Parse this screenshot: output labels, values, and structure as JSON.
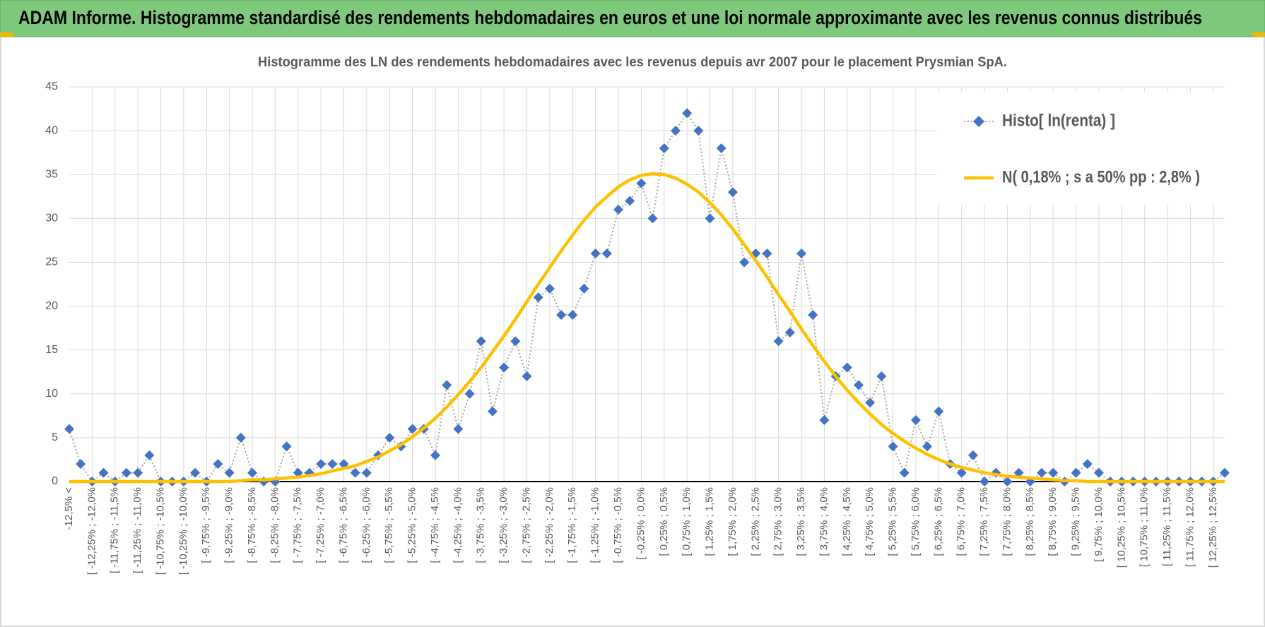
{
  "header": {
    "title": "ADAM Informe. Histogramme standardisé des rendements hebdomadaires en euros et une loi normale approximante avec les revenus connus distribués"
  },
  "chart_data": {
    "type": "line",
    "title": "Histogramme des LN des rendements hebdomadaires avec les revenus depuis avr 2007 pour le placement Prysmian SpA.",
    "categories": [
      "-12,5% <",
      null,
      "[ -12,25% ; -12,0%",
      null,
      "[ -11,75% ; -11,5%",
      null,
      "[ -11,25% ; -11,0%",
      null,
      "[ -10,75% ; -10,5%",
      null,
      "[ -10,25% ; -10,0%",
      null,
      "[ -9,75% ; -9,5%",
      null,
      "[ -9,25% ; -9,0%",
      null,
      "[ -8,75% ; -8,5%",
      null,
      "[ -8,25% ; -8,0%",
      null,
      "[ -7,75% ; -7,5%",
      null,
      "[ -7,25% ; -7,0%",
      null,
      "[ -6,75% ; -6,5%",
      null,
      "[ -6,25% ; -6,0%",
      null,
      "[ -5,75% ; -5,5%",
      null,
      "[ -5,25% ; -5,0%",
      null,
      "[ -4,75% ; -4,5%",
      null,
      "[ -4,25% ; -4,0%",
      null,
      "[ -3,75% ; -3,5%",
      null,
      "[ -3,25% ; -3,0%",
      null,
      "[ -2,75% ; -2,5%",
      null,
      "[ -2,25% ; -2,0%",
      null,
      "[ -1,75% ; -1,5%",
      null,
      "[ -1,25% ; -1,0%",
      null,
      "[ -0,75% ; -0,5%",
      null,
      "[ -0,25% ; 0,0%",
      null,
      "[ 0,25% ; 0,5%",
      null,
      "[ 0,75% ; 1,0%",
      null,
      "[ 1,25% ; 1,5%",
      null,
      "[ 1,75% ; 2,0%",
      null,
      "[ 2,25% ; 2,5%",
      null,
      "[ 2,75% ; 3,0%",
      null,
      "[ 3,25% ; 3,5%",
      null,
      "[ 3,75% ; 4,0%",
      null,
      "[ 4,25% ; 4,5%",
      null,
      "[ 4,75% ; 5,0%",
      null,
      "[ 5,25% ; 5,5%",
      null,
      "[ 5,75% ; 6,0%",
      null,
      "[ 6,25% ; 6,5%",
      null,
      "[ 6,75% ; 7,0%",
      null,
      "[ 7,25% ; 7,5%",
      null,
      "[ 7,75% ; 8,0%",
      null,
      "[ 8,25% ; 8,5%",
      null,
      "[ 8,75% ; 9,0%",
      null,
      "[ 9,25% ; 9,5%",
      null,
      "[ 9,75% ; 10,0%",
      null,
      "[ 10,25% ; 10,5%",
      null,
      "[ 10,75% ; 11,0%",
      null,
      "[ 11,25% ; 11,5%",
      null,
      "[ 11,75% ; 12,0%",
      null,
      "[ 12,25% ; 12,5%",
      null
    ],
    "series": [
      {
        "name": "Histo[ ln(renta) ]",
        "color": "#4472c4",
        "line_color": "#a5a5a5",
        "marker": "diamond",
        "line_style": "dotted",
        "values": [
          6,
          2,
          0,
          1,
          0,
          1,
          1,
          3,
          0,
          0,
          0,
          1,
          0,
          2,
          1,
          5,
          1,
          0,
          0,
          4,
          1,
          1,
          2,
          2,
          2,
          1,
          1,
          3,
          5,
          4,
          6,
          6,
          3,
          11,
          6,
          10,
          16,
          8,
          13,
          16,
          12,
          21,
          22,
          19,
          19,
          22,
          26,
          26,
          31,
          32,
          34,
          30,
          38,
          40,
          42,
          40,
          30,
          38,
          33,
          25,
          26,
          26,
          16,
          17,
          26,
          19,
          7,
          12,
          13,
          11,
          9,
          12,
          4,
          1,
          7,
          4,
          8,
          2,
          1,
          3,
          0,
          1,
          0,
          1,
          0,
          1,
          1,
          0,
          1,
          2,
          1,
          0,
          0,
          0,
          0,
          0,
          0,
          0,
          0,
          0,
          0,
          1
        ]
      },
      {
        "name": "N( 0,18% ; s a 50% pp : 2,8% )",
        "color": "#ffc000",
        "line_style": "solid",
        "values": [
          0,
          0,
          0,
          0,
          0,
          0,
          0,
          0,
          0,
          0,
          0,
          0,
          0,
          0,
          0,
          0.1,
          0.2,
          0.2,
          0.3,
          0.4,
          0.5,
          0.7,
          0.9,
          1.2,
          1.5,
          1.8,
          2.3,
          2.8,
          3.5,
          4.2,
          5.1,
          6.1,
          7.2,
          8.5,
          9.9,
          11.4,
          13.0,
          14.8,
          16.6,
          18.5,
          20.5,
          22.5,
          24.4,
          26.3,
          28.1,
          29.8,
          31.3,
          32.5,
          33.6,
          34.4,
          34.9,
          35.1,
          35.0,
          34.6,
          33.9,
          33.0,
          31.8,
          30.4,
          28.8,
          27.0,
          25.2,
          23.3,
          21.3,
          19.4,
          17.4,
          15.5,
          13.7,
          12.0,
          10.4,
          9.0,
          7.7,
          6.5,
          5.5,
          4.6,
          3.8,
          3.1,
          2.5,
          2.0,
          1.6,
          1.3,
          1.0,
          0.8,
          0.6,
          0.5,
          0.4,
          0.3,
          0.2,
          0.1,
          0.1,
          0,
          0,
          0,
          0,
          0,
          0,
          0,
          0,
          0,
          0,
          0,
          0,
          0
        ]
      }
    ],
    "ylim": [
      0,
      45
    ],
    "yticks": [
      0,
      5,
      10,
      15,
      20,
      25,
      30,
      35,
      40,
      45
    ],
    "grid": true,
    "legend": "top-right"
  }
}
